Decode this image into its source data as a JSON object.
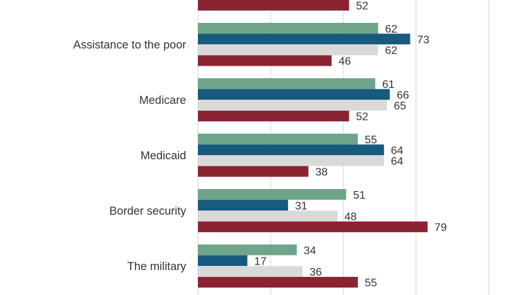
{
  "chart_data": {
    "type": "bar",
    "orientation": "horizontal",
    "categories": [
      "",
      "Assistance to the poor",
      "Medicare",
      "Medicaid",
      "Border security",
      "The military"
    ],
    "series": [
      {
        "color": "#6fa58a",
        "values": [
          null,
          62,
          61,
          55,
          51,
          34
        ]
      },
      {
        "color": "#165b7e",
        "values": [
          null,
          73,
          66,
          64,
          31,
          17
        ]
      },
      {
        "color": "#d9d9d9",
        "values": [
          null,
          62,
          65,
          64,
          48,
          36
        ]
      },
      {
        "color": "#8a2432",
        "values": [
          52,
          46,
          52,
          38,
          79,
          55
        ]
      }
    ],
    "xlim": [
      0,
      100
    ],
    "grid": true
  }
}
